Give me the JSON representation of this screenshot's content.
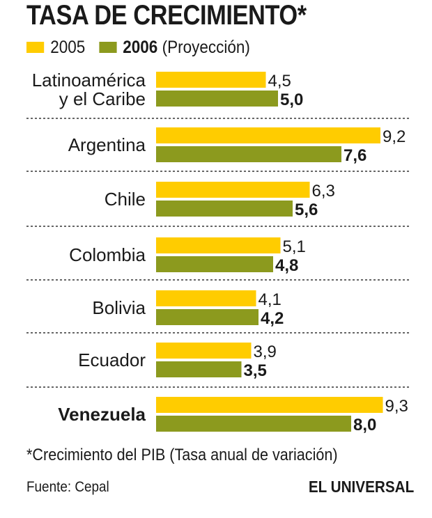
{
  "colors": {
    "c2005": "#FFCC00",
    "c2006": "#8C9A1E"
  },
  "chart_data": {
    "type": "bar",
    "orientation": "horizontal",
    "title": "TASA DE CRECIMIENTO*",
    "legend": [
      {
        "bold": "",
        "text": "2005"
      },
      {
        "bold": "2006",
        "text": " (Proyección)"
      }
    ],
    "categories": [
      {
        "lines": [
          "Latinoamérica",
          "y el Caribe"
        ],
        "bold": false
      },
      {
        "lines": [
          "Argentina"
        ],
        "bold": false
      },
      {
        "lines": [
          "Chile"
        ],
        "bold": false
      },
      {
        "lines": [
          "Colombia"
        ],
        "bold": false
      },
      {
        "lines": [
          "Bolivia"
        ],
        "bold": false
      },
      {
        "lines": [
          "Ecuador"
        ],
        "bold": false
      },
      {
        "lines": [
          "Venezuela"
        ],
        "bold": true
      }
    ],
    "series": [
      {
        "name": "2005",
        "values": [
          4.5,
          9.2,
          6.3,
          5.1,
          4.1,
          3.9,
          9.3
        ],
        "labels": [
          "4,5",
          "9,2",
          "6,3",
          "5,1",
          "4,1",
          "3,9",
          "9,3"
        ]
      },
      {
        "name": "2006 (Proyección)",
        "values": [
          5.0,
          7.6,
          5.6,
          4.8,
          4.2,
          3.5,
          8.0
        ],
        "labels": [
          "5,0",
          "7,6",
          "5,6",
          "4,8",
          "4,2",
          "3,5",
          "8,0"
        ]
      }
    ],
    "xlim": [
      0,
      10
    ],
    "footnote": "*Crecimiento del PIB (Tasa anual de variación)",
    "source": "Fuente: Cepal",
    "brand": "EL UNIVERSAL"
  }
}
